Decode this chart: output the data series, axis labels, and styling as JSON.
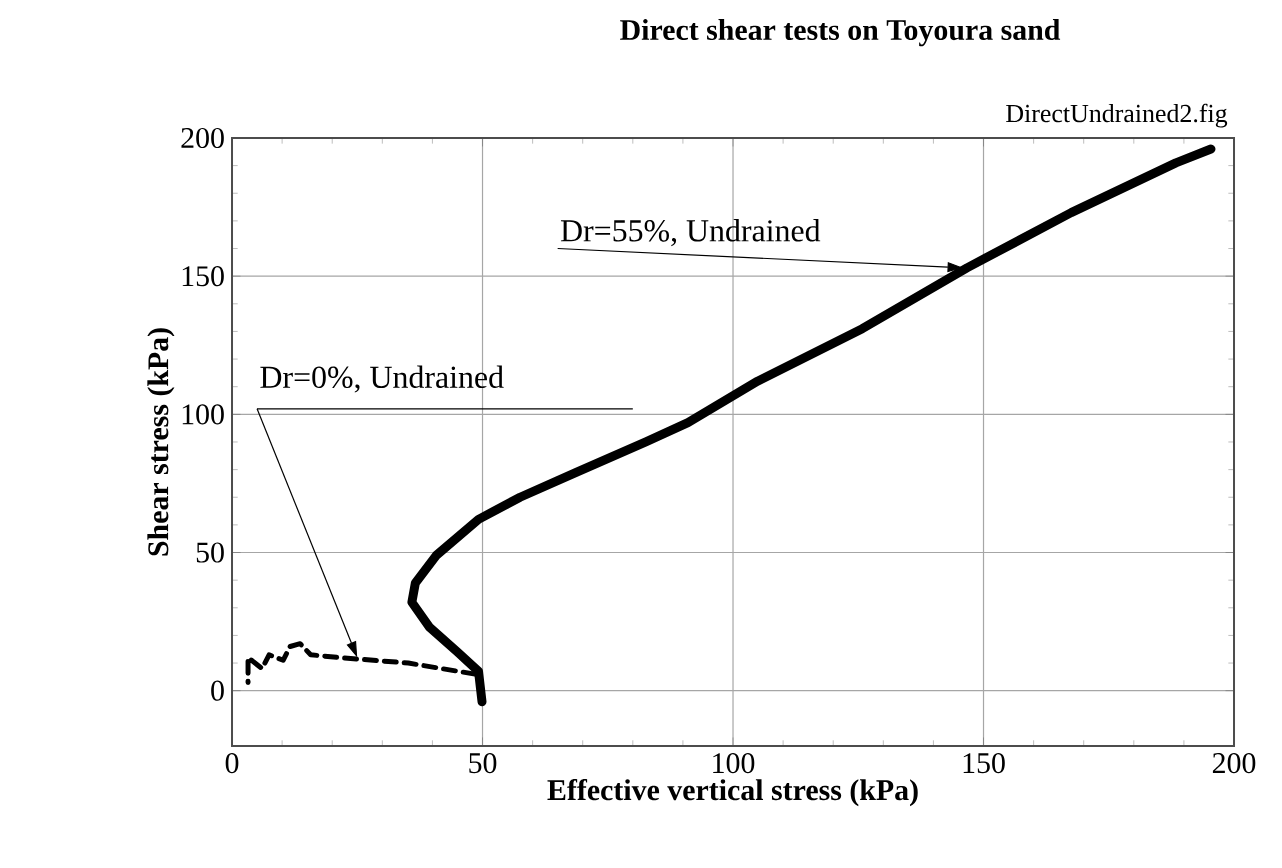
{
  "chart_data": {
    "type": "line",
    "title": "Direct shear tests on Toyoura sand",
    "xlabel": "Effective vertical stress (kPa)",
    "ylabel": "Shear stress (kPa)",
    "annotations": [
      "DirectUndrained2.fig"
    ],
    "xlim": [
      0,
      200
    ],
    "ylim": [
      -20,
      200
    ],
    "xticks": [
      0,
      50,
      100,
      150,
      200
    ],
    "yticks": [
      0,
      50,
      100,
      150,
      200
    ],
    "grid": true,
    "series": [
      {
        "name": "Dr=55%, Undrained",
        "color": "#000000",
        "line_style": "solid",
        "x": [
          49.9,
          49.2,
          45,
          39.4,
          35.9,
          36.6,
          40.8,
          49.2,
          57.5,
          68.7,
          82.6,
          91,
          104.9,
          125.8,
          146.7,
          167.5,
          188.4,
          195.4
        ],
        "values": [
          -4,
          7,
          14,
          23,
          32,
          39,
          49,
          62,
          70,
          79,
          90,
          97,
          112,
          131,
          153,
          173,
          191,
          196
        ]
      },
      {
        "name": "Dr=0%, Undrained",
        "color": "#000000",
        "line_style": "dashed",
        "x": [
          48.5,
          35.2,
          21.3,
          15.7,
          13.6,
          11.6,
          10.2,
          7.4,
          6,
          3.2,
          3.2
        ],
        "values": [
          6,
          10,
          12,
          13,
          17,
          16,
          11,
          13,
          8,
          12,
          3
        ]
      }
    ]
  }
}
